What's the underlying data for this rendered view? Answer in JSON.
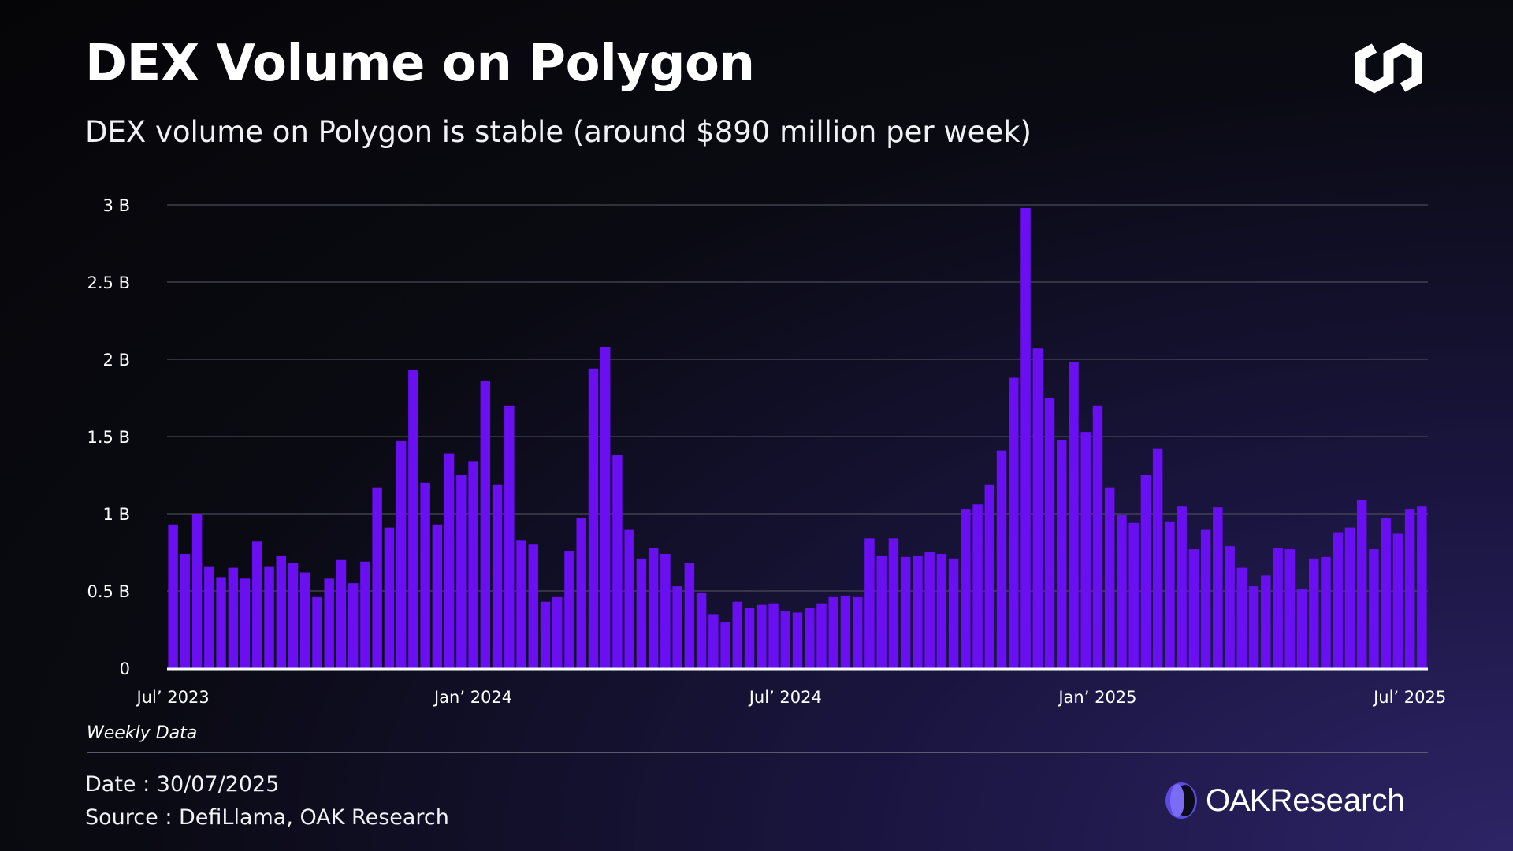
{
  "header": {
    "title": "DEX Volume on Polygon",
    "subtitle": "DEX volume on Polygon is stable (around $890 million per week)"
  },
  "footer": {
    "note": "Weekly Data",
    "date": "Date : 30/07/2025",
    "source": "Source : DefiLlama, OAK Research",
    "brand_bold": "OAK",
    "brand_rest": "Research"
  },
  "icons": {
    "top_right": "polygon-logo-icon",
    "brand": "oak-research-logo-icon"
  },
  "colors": {
    "bar": "#6a0ff2",
    "grid": "#4a4a58",
    "baseline": "#ffffff",
    "brand_mark": "#5b4be0"
  },
  "chart_data": {
    "type": "bar",
    "title": "DEX Volume on Polygon",
    "xlabel": "",
    "ylabel": "",
    "ylim": [
      0,
      3000000000
    ],
    "yticks": [
      0,
      500000000,
      1000000000,
      1500000000,
      2000000000,
      2500000000,
      3000000000
    ],
    "ytick_labels": [
      "0",
      "0.5 B",
      "1 B",
      "1.5 B",
      "2 B",
      "2.5 B",
      "3 B"
    ],
    "xtick_labels": [
      "Jul’ 2023",
      "Jan’ 2024",
      "Jul’ 2024",
      "Jan’ 2025",
      "Jul’ 2025"
    ],
    "xtick_positions": [
      0,
      25,
      51,
      77,
      103
    ],
    "grid": true,
    "series": [
      {
        "values": [
          930000000,
          740000000,
          1000000000,
          660000000,
          590000000,
          650000000,
          580000000,
          820000000,
          660000000,
          730000000,
          680000000,
          620000000,
          460000000,
          580000000,
          700000000,
          550000000,
          690000000,
          1170000000,
          910000000,
          1470000000,
          1930000000,
          1200000000,
          930000000,
          1390000000,
          1250000000,
          1340000000,
          1860000000,
          1190000000,
          1700000000,
          830000000,
          800000000,
          430000000,
          460000000,
          760000000,
          970000000,
          1940000000,
          2080000000,
          1380000000,
          900000000,
          710000000,
          780000000,
          740000000,
          530000000,
          680000000,
          490000000,
          350000000,
          300000000,
          430000000,
          390000000,
          410000000,
          420000000,
          370000000,
          360000000,
          390000000,
          420000000,
          460000000,
          470000000,
          460000000,
          840000000,
          730000000,
          840000000,
          720000000,
          730000000,
          750000000,
          740000000,
          710000000,
          1030000000,
          1060000000,
          1190000000,
          1410000000,
          1880000000,
          2980000000,
          2070000000,
          1750000000,
          1480000000,
          1980000000,
          1530000000,
          1700000000,
          1170000000,
          990000000,
          940000000,
          1250000000,
          1420000000,
          950000000,
          1050000000,
          770000000,
          900000000,
          1040000000,
          790000000,
          650000000,
          530000000,
          600000000,
          780000000,
          770000000,
          510000000,
          710000000,
          720000000,
          880000000,
          910000000,
          1090000000,
          770000000,
          970000000,
          870000000,
          1030000000,
          1050000000
        ]
      }
    ]
  }
}
